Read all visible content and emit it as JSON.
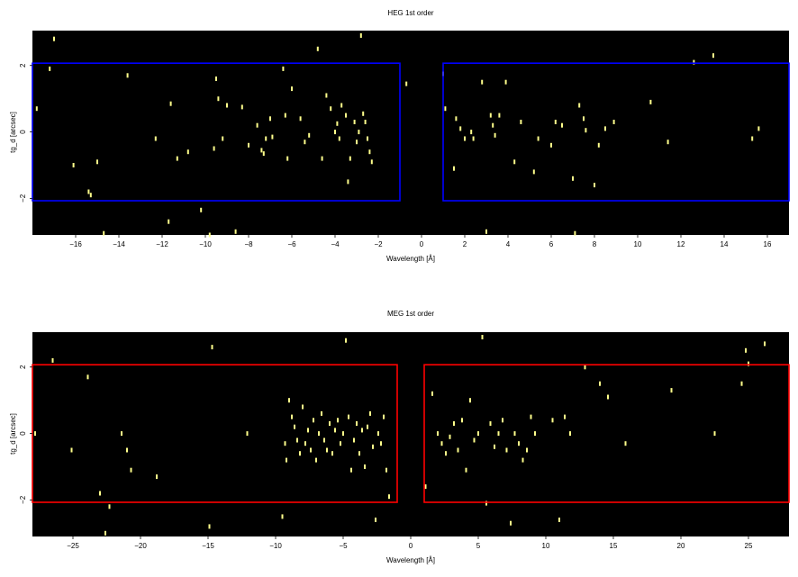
{
  "chart_data": [
    {
      "type": "scatter",
      "title": "HEG 1st order",
      "xlabel": "Wavelength [Å]",
      "ylabel": "tg_d [arcsec]",
      "xlim": [
        -18,
        17
      ],
      "ylim": [
        -3.1,
        3.05
      ],
      "xticks": [
        -16,
        -14,
        -12,
        -10,
        -8,
        -6,
        -4,
        -2,
        0,
        2,
        4,
        6,
        8,
        10,
        12,
        14,
        16
      ],
      "xtick_labels": [
        "−16",
        "−14",
        "−12",
        "−10",
        "−8",
        "−6",
        "−4",
        "−2",
        "0",
        "2",
        "4",
        "6",
        "8",
        "10",
        "12",
        "14",
        "16"
      ],
      "yticks": [
        -2,
        0,
        2
      ],
      "ytick_labels": [
        "−2",
        "0",
        "2"
      ],
      "background_color": "#000000",
      "point_color": "#ffff8c",
      "regions": [
        {
          "x": [
            -18,
            -1
          ],
          "y": [
            -2.07,
            2.07
          ],
          "color": "#0000ff"
        },
        {
          "x": [
            1,
            17
          ],
          "y": [
            -2.07,
            2.07
          ],
          "color": "#0000ff"
        }
      ],
      "x": [
        -17.8,
        -17.2,
        -17.0,
        -16.1,
        -15.4,
        -15.3,
        -15.0,
        -14.7,
        -13.6,
        -12.3,
        -11.7,
        -11.6,
        -11.3,
        -10.8,
        -10.2,
        -9.8,
        -9.6,
        -9.5,
        -9.4,
        -9.2,
        -9.0,
        -8.6,
        -8.3,
        -8.0,
        -7.6,
        -7.4,
        -7.3,
        -7.2,
        -7.0,
        -6.9,
        -6.4,
        -6.3,
        -6.2,
        -6.0,
        -5.6,
        -5.4,
        -5.2,
        -4.8,
        -4.6,
        -4.4,
        -4.2,
        -4.0,
        -3.9,
        -3.8,
        -3.7,
        -3.5,
        -3.4,
        -3.3,
        -3.1,
        -3.0,
        -2.9,
        -2.8,
        -2.7,
        -2.6,
        -2.5,
        -2.4,
        -2.3,
        -0.7,
        1.0,
        1.1,
        1.5,
        1.6,
        1.8,
        2.0,
        2.3,
        2.4,
        2.8,
        3.0,
        3.2,
        3.3,
        3.4,
        3.6,
        3.9,
        4.3,
        4.6,
        5.2,
        5.4,
        6.0,
        6.2,
        6.5,
        7.0,
        7.1,
        7.3,
        7.5,
        7.6,
        8.0,
        8.2,
        8.5,
        8.9,
        10.6,
        11.4,
        12.6,
        13.5,
        15.3,
        15.6
      ],
      "y": [
        0.7,
        1.9,
        2.8,
        -1.0,
        -1.8,
        -1.9,
        -0.9,
        -3.05,
        1.7,
        -0.2,
        -2.7,
        0.85,
        -0.8,
        -0.6,
        -2.35,
        -3.1,
        -0.5,
        1.6,
        1.0,
        -0.2,
        0.8,
        -3.0,
        0.75,
        -0.4,
        0.2,
        -0.55,
        -0.65,
        -0.2,
        0.4,
        -0.15,
        1.9,
        0.5,
        -0.8,
        1.3,
        0.4,
        -0.3,
        -0.1,
        2.5,
        -0.8,
        1.1,
        0.7,
        0.0,
        0.25,
        -0.2,
        0.8,
        0.5,
        -1.5,
        -0.8,
        0.3,
        -0.3,
        0.0,
        2.9,
        0.55,
        0.3,
        -0.2,
        -0.6,
        -0.9,
        1.45,
        1.75,
        0.7,
        -1.1,
        0.4,
        0.1,
        -0.2,
        0.0,
        -0.2,
        1.5,
        -3.0,
        0.5,
        0.2,
        -0.1,
        0.5,
        1.5,
        -0.9,
        0.3,
        -1.2,
        -0.2,
        -0.4,
        0.3,
        0.2,
        -1.4,
        -3.05,
        0.8,
        0.4,
        0.05,
        -1.6,
        -0.4,
        0.1,
        0.3,
        0.9,
        -0.3,
        2.1,
        2.3,
        -0.2,
        0.1
      ]
    },
    {
      "type": "scatter",
      "title": "MEG 1st order",
      "xlabel": "Wavelength [Å]",
      "ylabel": "tg_d [arcsec]",
      "xlim": [
        -28,
        28
      ],
      "ylim": [
        -3.1,
        3.05
      ],
      "xticks": [
        -25,
        -20,
        -15,
        -10,
        -5,
        0,
        5,
        10,
        15,
        20,
        25
      ],
      "xtick_labels": [
        "−25",
        "−20",
        "−15",
        "−10",
        "−5",
        "0",
        "5",
        "10",
        "15",
        "20",
        "25"
      ],
      "yticks": [
        -2,
        0,
        2
      ],
      "ytick_labels": [
        "−2",
        "0",
        "2"
      ],
      "background_color": "#000000",
      "point_color": "#ffff8c",
      "regions": [
        {
          "x": [
            -28,
            -1
          ],
          "y": [
            -2.07,
            2.07
          ],
          "color": "#ff0000"
        },
        {
          "x": [
            1,
            28
          ],
          "y": [
            -2.07,
            2.07
          ],
          "color": "#ff0000"
        }
      ],
      "x": [
        -27.8,
        -26.5,
        -25.1,
        -23.9,
        -23.0,
        -22.6,
        -22.3,
        -21.4,
        -21.0,
        -20.7,
        -18.8,
        -14.9,
        -14.7,
        -12.1,
        -9.5,
        -9.3,
        -9.2,
        -9.0,
        -8.8,
        -8.6,
        -8.4,
        -8.2,
        -8.0,
        -7.8,
        -7.6,
        -7.4,
        -7.2,
        -7.0,
        -6.8,
        -6.6,
        -6.4,
        -6.2,
        -6.0,
        -5.8,
        -5.6,
        -5.4,
        -5.2,
        -5.0,
        -4.8,
        -4.6,
        -4.4,
        -4.2,
        -4.0,
        -3.8,
        -3.6,
        -3.4,
        -3.2,
        -3.0,
        -2.8,
        -2.6,
        -2.4,
        -2.2,
        -2.0,
        -1.8,
        -1.6,
        1.1,
        1.6,
        2.0,
        2.3,
        2.6,
        2.9,
        3.2,
        3.5,
        3.8,
        4.1,
        4.4,
        4.7,
        5.0,
        5.3,
        5.6,
        5.9,
        6.2,
        6.5,
        6.8,
        7.1,
        7.4,
        7.7,
        8.0,
        8.3,
        8.6,
        8.9,
        9.2,
        10.5,
        11.0,
        11.4,
        11.8,
        12.9,
        14.0,
        14.6,
        15.9,
        19.3,
        22.5,
        24.5,
        24.8,
        25.0,
        26.2
      ],
      "y": [
        0.0,
        2.2,
        -0.5,
        1.7,
        -1.8,
        -3.0,
        -2.2,
        0.0,
        -0.5,
        -1.1,
        -1.3,
        -2.8,
        2.6,
        0.0,
        -2.5,
        -0.3,
        -0.8,
        1.0,
        0.5,
        0.2,
        -0.2,
        -0.6,
        0.8,
        -0.3,
        0.1,
        -0.5,
        0.4,
        -0.8,
        0.0,
        0.6,
        -0.2,
        -0.5,
        0.3,
        -0.6,
        0.1,
        0.4,
        -0.3,
        0.0,
        2.8,
        0.5,
        -1.1,
        -0.2,
        0.3,
        -0.6,
        0.1,
        -1.0,
        0.2,
        0.6,
        -0.4,
        -2.6,
        0.0,
        -0.3,
        0.5,
        -1.1,
        -1.9,
        -1.6,
        1.2,
        0.0,
        -0.3,
        -0.6,
        -0.1,
        0.3,
        -0.5,
        0.4,
        -1.1,
        1.0,
        -0.2,
        0.0,
        2.9,
        -2.1,
        0.3,
        -0.4,
        0.0,
        0.4,
        -0.5,
        -2.7,
        0.0,
        -0.3,
        -0.8,
        -0.5,
        0.5,
        0.0,
        0.4,
        -2.6,
        0.5,
        0.0,
        2.0,
        1.5,
        1.1,
        -0.3,
        1.3,
        0.0,
        1.5,
        2.5,
        2.1,
        2.7
      ]
    }
  ]
}
